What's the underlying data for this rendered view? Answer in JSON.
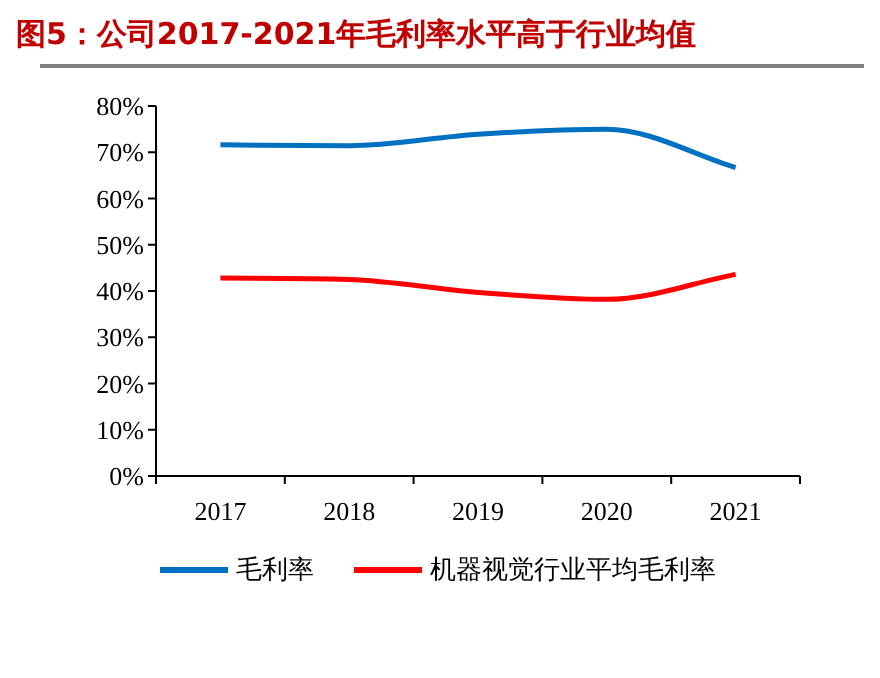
{
  "chart_data": {
    "type": "line",
    "title": "图5：公司2017-2021年毛利率水平高于行业均值",
    "categories": [
      "2017",
      "2018",
      "2019",
      "2020",
      "2021"
    ],
    "series": [
      {
        "name": "毛利率",
        "color": "#0070c0",
        "values": [
          71.6,
          71.4,
          73.9,
          75.0,
          66.7
        ]
      },
      {
        "name": "机器视觉行业平均毛利率",
        "color": "#ff0000",
        "values": [
          42.8,
          42.5,
          39.7,
          38.2,
          43.6
        ]
      }
    ],
    "ylim": [
      0,
      80
    ],
    "yticks": [
      {
        "value": 0,
        "label": "0%"
      },
      {
        "value": 10,
        "label": "10%"
      },
      {
        "value": 20,
        "label": "20%"
      },
      {
        "value": 30,
        "label": "30%"
      },
      {
        "value": 40,
        "label": "40%"
      },
      {
        "value": 50,
        "label": "50%"
      },
      {
        "value": 60,
        "label": "60%"
      },
      {
        "value": 70,
        "label": "70%"
      },
      {
        "value": 80,
        "label": "80%"
      }
    ],
    "legend": "bottom",
    "grid": false
  }
}
